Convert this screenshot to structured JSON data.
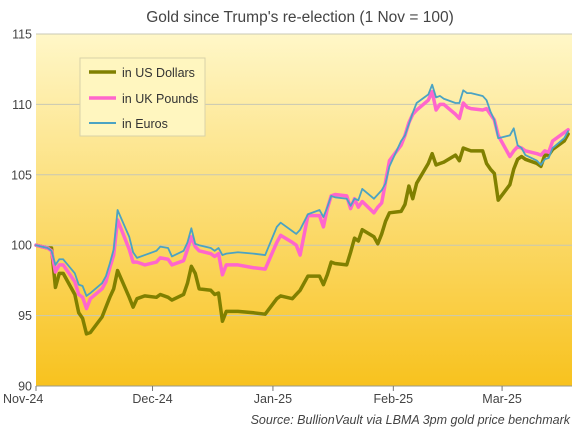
{
  "chart_data": {
    "type": "line",
    "title": "Gold since Trump's re-election (1 Nov = 100)",
    "source_label": "Source:",
    "source_text": "BullionVault via LBMA 3pm gold price benchmark",
    "xlabel": "",
    "ylabel": "",
    "ylim": [
      90,
      115
    ],
    "yticks": [
      90,
      95,
      100,
      105,
      110,
      115
    ],
    "x_domain": [
      "2024-11-01",
      "2025-03-19"
    ],
    "x_ticks": [
      {
        "label": "Nov-24",
        "date": "2024-11-01"
      },
      {
        "label": "Dec-24",
        "date": "2024-12-01"
      },
      {
        "label": "Jan-25",
        "date": "2025-01-01"
      },
      {
        "label": "Feb-25",
        "date": "2025-02-01"
      },
      {
        "label": "Mar-25",
        "date": "2025-03-01"
      }
    ],
    "grid": true,
    "legend_position": "top-left",
    "background": {
      "top": "#FFF7C8",
      "bottom": "#F8C21E"
    },
    "series": [
      {
        "name": "in US Dollars",
        "color": "#808000",
        "points": [
          [
            "2024-11-01",
            100.0
          ],
          [
            "2024-11-04",
            99.8
          ],
          [
            "2024-11-05",
            99.8
          ],
          [
            "2024-11-06",
            97.0
          ],
          [
            "2024-11-07",
            98.0
          ],
          [
            "2024-11-08",
            98.0
          ],
          [
            "2024-11-11",
            96.5
          ],
          [
            "2024-11-12",
            95.2
          ],
          [
            "2024-11-13",
            94.8
          ],
          [
            "2024-11-14",
            93.7
          ],
          [
            "2024-11-15",
            93.8
          ],
          [
            "2024-11-18",
            94.9
          ],
          [
            "2024-11-19",
            95.6
          ],
          [
            "2024-11-20",
            96.3
          ],
          [
            "2024-11-21",
            96.9
          ],
          [
            "2024-11-22",
            98.2
          ],
          [
            "2024-11-25",
            96.3
          ],
          [
            "2024-11-26",
            95.6
          ],
          [
            "2024-11-27",
            96.2
          ],
          [
            "2024-11-29",
            96.4
          ],
          [
            "2024-12-02",
            96.3
          ],
          [
            "2024-12-03",
            96.5
          ],
          [
            "2024-12-05",
            96.3
          ],
          [
            "2024-12-06",
            96.1
          ],
          [
            "2024-12-09",
            96.5
          ],
          [
            "2024-12-10",
            97.3
          ],
          [
            "2024-12-11",
            98.5
          ],
          [
            "2024-12-12",
            98.0
          ],
          [
            "2024-12-13",
            96.9
          ],
          [
            "2024-12-16",
            96.8
          ],
          [
            "2024-12-17",
            96.5
          ],
          [
            "2024-12-18",
            96.6
          ],
          [
            "2024-12-19",
            94.6
          ],
          [
            "2024-12-20",
            95.3
          ],
          [
            "2024-12-23",
            95.3
          ],
          [
            "2024-12-27",
            95.2
          ],
          [
            "2024-12-30",
            95.1
          ],
          [
            "2025-01-02",
            96.2
          ],
          [
            "2025-01-03",
            96.4
          ],
          [
            "2025-01-06",
            96.2
          ],
          [
            "2025-01-07",
            96.5
          ],
          [
            "2025-01-08",
            96.8
          ],
          [
            "2025-01-10",
            97.8
          ],
          [
            "2025-01-13",
            97.8
          ],
          [
            "2025-01-14",
            97.2
          ],
          [
            "2025-01-15",
            97.9
          ],
          [
            "2025-01-16",
            98.8
          ],
          [
            "2025-01-17",
            98.7
          ],
          [
            "2025-01-20",
            98.6
          ],
          [
            "2025-01-21",
            99.5
          ],
          [
            "2025-01-22",
            100.5
          ],
          [
            "2025-01-23",
            100.3
          ],
          [
            "2025-01-24",
            101.1
          ],
          [
            "2025-01-27",
            100.6
          ],
          [
            "2025-01-28",
            100.1
          ],
          [
            "2025-01-29",
            100.8
          ],
          [
            "2025-01-30",
            101.7
          ],
          [
            "2025-01-31",
            102.3
          ],
          [
            "2025-02-03",
            102.4
          ],
          [
            "2025-02-04",
            102.9
          ],
          [
            "2025-02-05",
            104.2
          ],
          [
            "2025-02-06",
            103.3
          ],
          [
            "2025-02-07",
            104.4
          ],
          [
            "2025-02-10",
            105.8
          ],
          [
            "2025-02-11",
            106.5
          ],
          [
            "2025-02-12",
            105.7
          ],
          [
            "2025-02-13",
            105.8
          ],
          [
            "2025-02-14",
            105.9
          ],
          [
            "2025-02-17",
            106.4
          ],
          [
            "2025-02-18",
            106.0
          ],
          [
            "2025-02-19",
            106.9
          ],
          [
            "2025-02-20",
            106.8
          ],
          [
            "2025-02-21",
            106.7
          ],
          [
            "2025-02-24",
            106.7
          ],
          [
            "2025-02-25",
            105.8
          ],
          [
            "2025-02-26",
            105.4
          ],
          [
            "2025-02-27",
            105.1
          ],
          [
            "2025-02-28",
            103.2
          ],
          [
            "2025-03-03",
            104.3
          ],
          [
            "2025-03-04",
            105.4
          ],
          [
            "2025-03-05",
            106.1
          ],
          [
            "2025-03-06",
            106.3
          ],
          [
            "2025-03-07",
            106.1
          ],
          [
            "2025-03-10",
            105.8
          ],
          [
            "2025-03-11",
            105.6
          ],
          [
            "2025-03-12",
            106.4
          ],
          [
            "2025-03-13",
            106.4
          ],
          [
            "2025-03-14",
            106.8
          ],
          [
            "2025-03-17",
            107.4
          ],
          [
            "2025-03-18",
            107.9
          ]
        ]
      },
      {
        "name": "in UK Pounds",
        "color": "#FF66CC",
        "points": [
          [
            "2024-11-01",
            100.0
          ],
          [
            "2024-11-04",
            99.8
          ],
          [
            "2024-11-05",
            99.6
          ],
          [
            "2024-11-06",
            98.1
          ],
          [
            "2024-11-07",
            98.6
          ],
          [
            "2024-11-08",
            98.6
          ],
          [
            "2024-11-11",
            97.4
          ],
          [
            "2024-11-12",
            96.5
          ],
          [
            "2024-11-13",
            96.3
          ],
          [
            "2024-11-14",
            95.5
          ],
          [
            "2024-11-15",
            96.2
          ],
          [
            "2024-11-18",
            96.9
          ],
          [
            "2024-11-19",
            97.4
          ],
          [
            "2024-11-20",
            98.4
          ],
          [
            "2024-11-21",
            99.3
          ],
          [
            "2024-11-22",
            101.8
          ],
          [
            "2024-11-25",
            99.7
          ],
          [
            "2024-11-26",
            98.8
          ],
          [
            "2024-11-27",
            98.8
          ],
          [
            "2024-11-29",
            98.6
          ],
          [
            "2024-12-02",
            98.8
          ],
          [
            "2024-12-03",
            99.1
          ],
          [
            "2024-12-05",
            99.0
          ],
          [
            "2024-12-06",
            98.6
          ],
          [
            "2024-12-09",
            98.9
          ],
          [
            "2024-12-10",
            99.7
          ],
          [
            "2024-12-11",
            100.6
          ],
          [
            "2024-12-12",
            99.9
          ],
          [
            "2024-12-13",
            99.6
          ],
          [
            "2024-12-16",
            99.4
          ],
          [
            "2024-12-17",
            99.2
          ],
          [
            "2024-12-18",
            99.4
          ],
          [
            "2024-12-19",
            97.9
          ],
          [
            "2024-12-20",
            98.6
          ],
          [
            "2024-12-23",
            98.6
          ],
          [
            "2024-12-27",
            98.4
          ],
          [
            "2024-12-30",
            98.3
          ],
          [
            "2025-01-02",
            100.2
          ],
          [
            "2025-01-03",
            100.7
          ],
          [
            "2025-01-06",
            100.2
          ],
          [
            "2025-01-07",
            100.0
          ],
          [
            "2025-01-08",
            99.3
          ],
          [
            "2025-01-10",
            102.1
          ],
          [
            "2025-01-13",
            102.1
          ],
          [
            "2025-01-14",
            101.3
          ],
          [
            "2025-01-15",
            102.6
          ],
          [
            "2025-01-16",
            103.5
          ],
          [
            "2025-01-17",
            103.6
          ],
          [
            "2025-01-20",
            103.5
          ],
          [
            "2025-01-21",
            102.6
          ],
          [
            "2025-01-22",
            103.3
          ],
          [
            "2025-01-23",
            102.7
          ],
          [
            "2025-01-24",
            103.1
          ],
          [
            "2025-01-27",
            102.3
          ],
          [
            "2025-01-28",
            102.7
          ],
          [
            "2025-01-29",
            103.0
          ],
          [
            "2025-01-30",
            104.5
          ],
          [
            "2025-01-31",
            106.0
          ],
          [
            "2025-02-03",
            107.1
          ],
          [
            "2025-02-04",
            107.8
          ],
          [
            "2025-02-05",
            108.7
          ],
          [
            "2025-02-06",
            109.3
          ],
          [
            "2025-02-07",
            109.6
          ],
          [
            "2025-02-10",
            110.3
          ],
          [
            "2025-02-11",
            110.9
          ],
          [
            "2025-02-12",
            109.6
          ],
          [
            "2025-02-13",
            110.0
          ],
          [
            "2025-02-14",
            110.0
          ],
          [
            "2025-02-17",
            109.3
          ],
          [
            "2025-02-18",
            109.0
          ],
          [
            "2025-02-19",
            110.1
          ],
          [
            "2025-02-20",
            109.8
          ],
          [
            "2025-02-21",
            109.7
          ],
          [
            "2025-02-24",
            109.6
          ],
          [
            "2025-02-25",
            109.7
          ],
          [
            "2025-02-26",
            109.3
          ],
          [
            "2025-02-27",
            108.9
          ],
          [
            "2025-02-28",
            107.8
          ],
          [
            "2025-03-03",
            106.3
          ],
          [
            "2025-03-04",
            106.7
          ],
          [
            "2025-03-05",
            107.0
          ],
          [
            "2025-03-06",
            106.9
          ],
          [
            "2025-03-07",
            106.7
          ],
          [
            "2025-03-10",
            106.5
          ],
          [
            "2025-03-11",
            106.4
          ],
          [
            "2025-03-12",
            106.7
          ],
          [
            "2025-03-13",
            106.6
          ],
          [
            "2025-03-14",
            107.4
          ],
          [
            "2025-03-17",
            108.0
          ],
          [
            "2025-03-18",
            108.2
          ]
        ]
      },
      {
        "name": "in Euros",
        "color": "#4BA3C3",
        "points": [
          [
            "2024-11-01",
            100.0
          ],
          [
            "2024-11-04",
            99.8
          ],
          [
            "2024-11-05",
            99.6
          ],
          [
            "2024-11-06",
            98.6
          ],
          [
            "2024-11-07",
            99.0
          ],
          [
            "2024-11-08",
            99.0
          ],
          [
            "2024-11-11",
            98.0
          ],
          [
            "2024-11-12",
            97.2
          ],
          [
            "2024-11-13",
            97.1
          ],
          [
            "2024-11-14",
            96.4
          ],
          [
            "2024-11-15",
            96.6
          ],
          [
            "2024-11-18",
            97.3
          ],
          [
            "2024-11-19",
            97.8
          ],
          [
            "2024-11-20",
            98.7
          ],
          [
            "2024-11-21",
            99.7
          ],
          [
            "2024-11-22",
            102.5
          ],
          [
            "2024-11-25",
            100.6
          ],
          [
            "2024-11-26",
            99.5
          ],
          [
            "2024-11-27",
            99.1
          ],
          [
            "2024-11-29",
            99.3
          ],
          [
            "2024-12-02",
            99.6
          ],
          [
            "2024-12-03",
            99.9
          ],
          [
            "2024-12-05",
            99.8
          ],
          [
            "2024-12-06",
            99.2
          ],
          [
            "2024-12-09",
            99.6
          ],
          [
            "2024-12-10",
            100.2
          ],
          [
            "2024-12-11",
            101.2
          ],
          [
            "2024-12-12",
            100.1
          ],
          [
            "2024-12-13",
            100.0
          ],
          [
            "2024-12-16",
            99.8
          ],
          [
            "2024-12-17",
            99.6
          ],
          [
            "2024-12-18",
            99.8
          ],
          [
            "2024-12-19",
            99.3
          ],
          [
            "2024-12-20",
            99.4
          ],
          [
            "2024-12-23",
            99.5
          ],
          [
            "2024-12-27",
            99.4
          ],
          [
            "2024-12-30",
            99.3
          ],
          [
            "2025-01-02",
            101.3
          ],
          [
            "2025-01-03",
            101.6
          ],
          [
            "2025-01-06",
            101.0
          ],
          [
            "2025-01-07",
            100.8
          ],
          [
            "2025-01-08",
            101.1
          ],
          [
            "2025-01-10",
            102.2
          ],
          [
            "2025-01-13",
            102.5
          ],
          [
            "2025-01-14",
            102.0
          ],
          [
            "2025-01-15",
            102.7
          ],
          [
            "2025-01-16",
            103.5
          ],
          [
            "2025-01-17",
            103.4
          ],
          [
            "2025-01-20",
            103.3
          ],
          [
            "2025-01-21",
            102.8
          ],
          [
            "2025-01-22",
            103.3
          ],
          [
            "2025-01-23",
            103.2
          ],
          [
            "2025-01-24",
            104.0
          ],
          [
            "2025-01-27",
            103.3
          ],
          [
            "2025-01-28",
            103.6
          ],
          [
            "2025-01-29",
            103.9
          ],
          [
            "2025-01-30",
            104.4
          ],
          [
            "2025-01-31",
            105.6
          ],
          [
            "2025-02-03",
            107.4
          ],
          [
            "2025-02-04",
            107.8
          ],
          [
            "2025-02-05",
            108.6
          ],
          [
            "2025-02-06",
            109.4
          ],
          [
            "2025-02-07",
            110.1
          ],
          [
            "2025-02-10",
            110.7
          ],
          [
            "2025-02-11",
            111.4
          ],
          [
            "2025-02-12",
            110.5
          ],
          [
            "2025-02-13",
            110.6
          ],
          [
            "2025-02-14",
            110.4
          ],
          [
            "2025-02-17",
            110.1
          ],
          [
            "2025-02-18",
            110.1
          ],
          [
            "2025-02-19",
            111.0
          ],
          [
            "2025-02-20",
            110.8
          ],
          [
            "2025-02-21",
            110.8
          ],
          [
            "2025-02-24",
            110.6
          ],
          [
            "2025-02-25",
            110.3
          ],
          [
            "2025-02-26",
            109.5
          ],
          [
            "2025-02-27",
            108.9
          ],
          [
            "2025-02-28",
            107.6
          ],
          [
            "2025-03-03",
            107.8
          ],
          [
            "2025-03-04",
            108.3
          ],
          [
            "2025-03-05",
            107.1
          ],
          [
            "2025-03-06",
            106.9
          ],
          [
            "2025-03-07",
            106.4
          ],
          [
            "2025-03-10",
            106.0
          ],
          [
            "2025-03-11",
            105.7
          ],
          [
            "2025-03-12",
            106.1
          ],
          [
            "2025-03-13",
            106.2
          ],
          [
            "2025-03-14",
            106.9
          ],
          [
            "2025-03-17",
            107.6
          ],
          [
            "2025-03-18",
            108.1
          ]
        ]
      }
    ]
  }
}
